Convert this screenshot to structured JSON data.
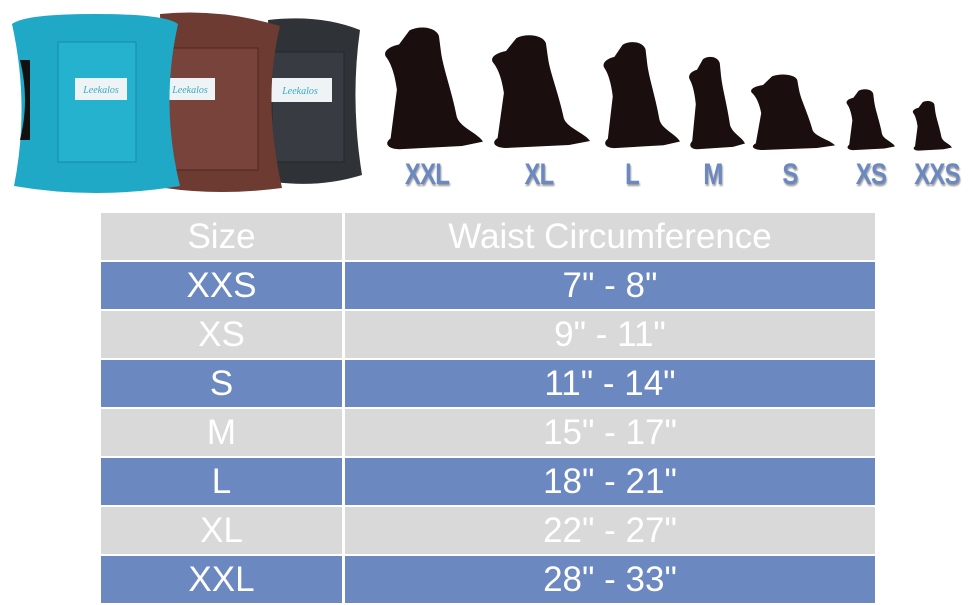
{
  "product": {
    "brand_label": "Leekalos",
    "colors": {
      "teal": "#1fa9c6",
      "brown": "#6e3b33",
      "charcoal": "#2f3338"
    }
  },
  "dog_sizes": [
    "XXL",
    "XL",
    "L",
    "M",
    "S",
    "XS",
    "XXS"
  ],
  "label_color": "#6b88c0",
  "table": {
    "headers": [
      "Size",
      "Waist Circumference"
    ],
    "rows": [
      {
        "size": "XXS",
        "waist": "7\" - 8\""
      },
      {
        "size": "XS",
        "waist": "9\" - 11\""
      },
      {
        "size": "S",
        "waist": "11\" - 14\""
      },
      {
        "size": "M",
        "waist": "15\" - 17\""
      },
      {
        "size": "L",
        "waist": "18\" - 21\""
      },
      {
        "size": "XL",
        "waist": "22\" - 27\""
      },
      {
        "size": "XXL",
        "waist": "28\" - 33\""
      }
    ],
    "colors": {
      "gray": "#d9d9d9",
      "blue": "#6b88c0"
    }
  }
}
